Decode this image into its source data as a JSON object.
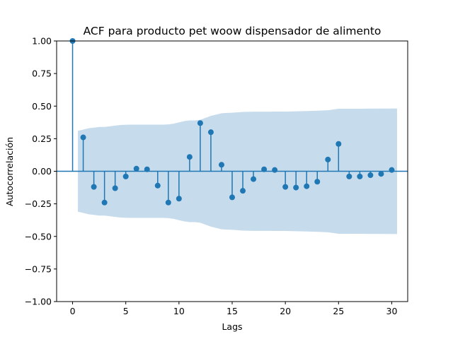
{
  "chart_data": {
    "type": "stem",
    "title": "ACF para producto pet woow dispensador de alimento",
    "xlabel": "Lags",
    "ylabel": "Autocorrelación",
    "xlim": [
      -1.5,
      31.5
    ],
    "ylim": [
      -1.0,
      1.0
    ],
    "xticks": [
      0,
      5,
      10,
      15,
      20,
      25,
      30
    ],
    "yticks": [
      -1.0,
      -0.75,
      -0.5,
      -0.25,
      0.0,
      0.25,
      0.5,
      0.75,
      1.0
    ],
    "ytick_labels": [
      "−1.00",
      "−0.75",
      "−0.50",
      "−0.25",
      "0.00",
      "0.25",
      "0.50",
      "0.75",
      "1.00"
    ],
    "grid": false,
    "lags": [
      0,
      1,
      2,
      3,
      4,
      5,
      6,
      7,
      8,
      9,
      10,
      11,
      12,
      13,
      14,
      15,
      16,
      17,
      18,
      19,
      20,
      21,
      22,
      23,
      24,
      25,
      26,
      27,
      28,
      29,
      30
    ],
    "values": [
      1.0,
      0.26,
      -0.12,
      -0.24,
      -0.13,
      -0.04,
      0.02,
      0.015,
      -0.11,
      -0.24,
      -0.21,
      0.11,
      0.37,
      0.3,
      0.05,
      -0.2,
      -0.15,
      -0.06,
      0.015,
      0.01,
      -0.12,
      -0.125,
      -0.115,
      -0.08,
      0.09,
      0.21,
      -0.04,
      -0.04,
      -0.03,
      -0.02,
      0.01
    ],
    "confidence_band": {
      "lags": [
        0.5,
        1,
        1.5,
        2,
        2.5,
        3,
        3.5,
        4,
        4.5,
        5,
        5.5,
        6,
        6.5,
        7,
        7.5,
        8,
        8.5,
        9,
        9.5,
        10,
        10.5,
        11,
        11.5,
        12,
        12.5,
        13,
        13.5,
        14,
        14.5,
        15,
        16,
        17,
        18,
        19,
        20,
        21,
        22,
        23,
        24,
        25,
        26,
        27,
        28,
        29,
        30,
        30.5
      ],
      "upper": [
        0.31,
        0.32,
        0.33,
        0.335,
        0.34,
        0.34,
        0.345,
        0.35,
        0.355,
        0.357,
        0.358,
        0.358,
        0.358,
        0.358,
        0.358,
        0.358,
        0.358,
        0.36,
        0.365,
        0.375,
        0.385,
        0.39,
        0.39,
        0.395,
        0.41,
        0.425,
        0.435,
        0.445,
        0.448,
        0.449,
        0.455,
        0.457,
        0.457,
        0.458,
        0.458,
        0.46,
        0.462,
        0.465,
        0.468,
        0.48,
        0.48,
        0.48,
        0.481,
        0.481,
        0.482,
        0.482
      ]
    },
    "colors": {
      "stem": "#1f77b4",
      "band": "#c6dbec",
      "axes": "#000000"
    }
  }
}
